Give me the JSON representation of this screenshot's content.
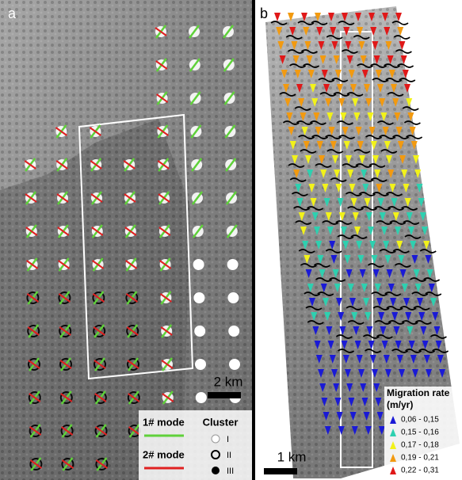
{
  "panel_a": {
    "label": "a",
    "scale": "2 km",
    "legend": {
      "mode1": {
        "label": "1# mode",
        "color": "#5fd13a"
      },
      "mode2": {
        "label": "2# mode",
        "color": "#e02020"
      },
      "cluster_title": "Cluster",
      "clusters": [
        "I",
        "II",
        "III"
      ]
    }
  },
  "panel_b": {
    "label": "b",
    "scale": "1 km",
    "legend": {
      "title": "Migration rate",
      "unit": "(m/yr)",
      "items": [
        {
          "label": "0,06 - 0,15",
          "color": "#1a1ad6"
        },
        {
          "label": "0,15 - 0,16",
          "color": "#2ed0b0"
        },
        {
          "label": "0,17 - 0,18",
          "color": "#f2f21a"
        },
        {
          "label": "0,19 - 0,21",
          "color": "#f29a10"
        },
        {
          "label": "0,22 - 0,31",
          "color": "#e01818"
        }
      ]
    }
  }
}
